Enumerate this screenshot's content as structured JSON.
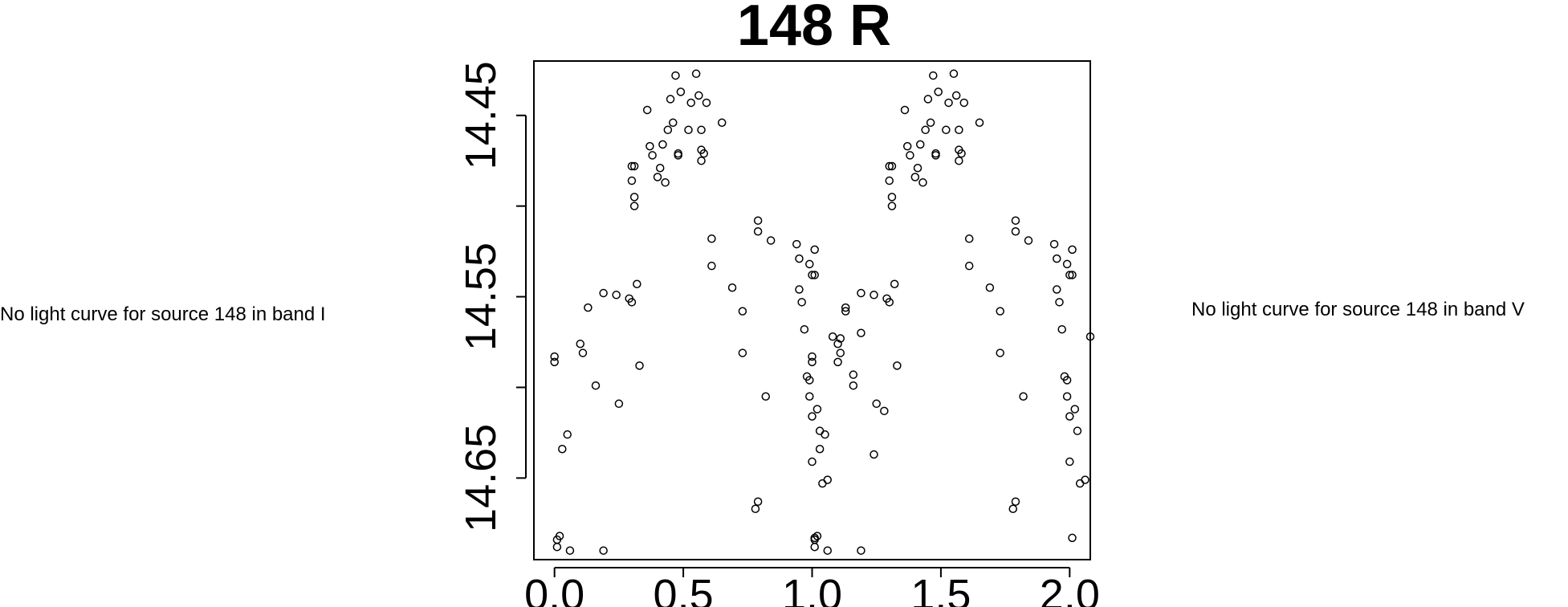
{
  "left_note": "No light curve for source 148 in band I",
  "right_note": "No light curve for source 148 in band V",
  "chart_data": {
    "type": "scatter",
    "title": "148 R",
    "xlabel": "",
    "ylabel": "",
    "xlim": [
      -0.08,
      2.08
    ],
    "ylim": [
      14.695,
      14.42
    ],
    "y_inverted": true,
    "x_ticks": [
      "0.0",
      "0.5",
      "1.0",
      "1.5",
      "2.0"
    ],
    "x_tick_values": [
      0.0,
      0.5,
      1.0,
      1.5,
      2.0
    ],
    "y_ticks": [
      "14.45",
      "14.55",
      "14.65"
    ],
    "y_tick_values": [
      14.45,
      14.55,
      14.65
    ],
    "y_minor_ticks": [
      14.5,
      14.6
    ],
    "grid": false,
    "marker": "open-circle",
    "points": [
      [
        0.0,
        14.583
      ],
      [
        0.0,
        14.586
      ],
      [
        0.01,
        14.688
      ],
      [
        0.01,
        14.684
      ],
      [
        0.02,
        14.682
      ],
      [
        0.03,
        14.634
      ],
      [
        0.05,
        14.626
      ],
      [
        0.06,
        14.69
      ],
      [
        0.1,
        14.576
      ],
      [
        0.11,
        14.581
      ],
      [
        0.13,
        14.556
      ],
      [
        0.16,
        14.599
      ],
      [
        0.19,
        14.548
      ],
      [
        0.19,
        14.69
      ],
      [
        0.24,
        14.549
      ],
      [
        0.25,
        14.609
      ],
      [
        0.29,
        14.551
      ],
      [
        0.3,
        14.553
      ],
      [
        0.3,
        14.478
      ],
      [
        0.3,
        14.486
      ],
      [
        0.31,
        14.478
      ],
      [
        0.31,
        14.495
      ],
      [
        0.31,
        14.5
      ],
      [
        0.32,
        14.543
      ],
      [
        0.33,
        14.588
      ],
      [
        0.36,
        14.447
      ],
      [
        0.37,
        14.467
      ],
      [
        0.38,
        14.472
      ],
      [
        0.4,
        14.484
      ],
      [
        0.41,
        14.479
      ],
      [
        0.42,
        14.466
      ],
      [
        0.43,
        14.487
      ],
      [
        0.44,
        14.458
      ],
      [
        0.45,
        14.441
      ],
      [
        0.46,
        14.454
      ],
      [
        0.47,
        14.428
      ],
      [
        0.48,
        14.471
      ],
      [
        0.48,
        14.472
      ],
      [
        0.49,
        14.437
      ],
      [
        0.52,
        14.458
      ],
      [
        0.53,
        14.443
      ],
      [
        0.55,
        14.427
      ],
      [
        0.56,
        14.439
      ],
      [
        0.57,
        14.458
      ],
      [
        0.57,
        14.475
      ],
      [
        0.57,
        14.469
      ],
      [
        0.58,
        14.471
      ],
      [
        0.59,
        14.443
      ],
      [
        0.61,
        14.533
      ],
      [
        0.61,
        14.518
      ],
      [
        0.65,
        14.454
      ],
      [
        0.69,
        14.545
      ],
      [
        0.73,
        14.558
      ],
      [
        0.73,
        14.581
      ],
      [
        0.78,
        14.667
      ],
      [
        0.79,
        14.663
      ],
      [
        0.79,
        14.514
      ],
      [
        0.79,
        14.508
      ],
      [
        0.82,
        14.605
      ],
      [
        0.84,
        14.519
      ],
      [
        0.94,
        14.521
      ],
      [
        0.95,
        14.529
      ],
      [
        0.95,
        14.546
      ],
      [
        0.96,
        14.553
      ],
      [
        0.97,
        14.568
      ],
      [
        0.98,
        14.594
      ],
      [
        0.99,
        14.605
      ],
      [
        0.99,
        14.532
      ],
      [
        0.99,
        14.596
      ],
      [
        1.0,
        14.641
      ],
      [
        1.0,
        14.538
      ],
      [
        1.0,
        14.616
      ],
      [
        1.01,
        14.524
      ],
      [
        1.01,
        14.683
      ],
      [
        1.01,
        14.538
      ],
      [
        1.02,
        14.612
      ],
      [
        1.03,
        14.624
      ],
      [
        1.04,
        14.653
      ],
      [
        1.06,
        14.651
      ],
      [
        1.08,
        14.572
      ],
      [
        1.1,
        14.586
      ],
      [
        1.11,
        14.573
      ],
      [
        1.13,
        14.558
      ],
      [
        1.16,
        14.593
      ],
      [
        1.19,
        14.57
      ],
      [
        1.24,
        14.637
      ],
      [
        1.28,
        14.613
      ]
    ]
  }
}
